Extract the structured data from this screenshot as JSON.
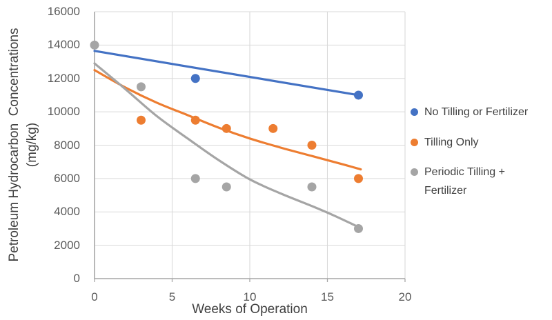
{
  "chart_data": {
    "type": "scatter",
    "title": "",
    "xlabel": "Weeks of Operation",
    "ylabel": "Petroleum Hydrocarbon Concentrations (mg/kg)",
    "ylabel_lines": [
      "Petroleum Hydrocarbon  Concentrations",
      "(mg/kg)"
    ],
    "xlim": [
      0,
      20
    ],
    "ylim": [
      0,
      16000
    ],
    "x_ticks": [
      0,
      5,
      10,
      15,
      20
    ],
    "y_ticks": [
      0,
      2000,
      4000,
      6000,
      8000,
      10000,
      12000,
      14000,
      16000
    ],
    "grid": true,
    "legend_position": "right",
    "colors": {
      "gridline": "#D9D9D9",
      "axis": "#A6A6A6",
      "tick_text": "#595959",
      "title_text": "#404040"
    },
    "series": [
      {
        "name": "No Tilling or Fertilizer",
        "legend_lines": [
          "No Tilling or Fertilizer"
        ],
        "color": "#4472C4",
        "points": [
          [
            6.5,
            12000
          ],
          [
            17,
            11000
          ]
        ],
        "trend_type": "linear",
        "trend": [
          [
            0,
            13650
          ],
          [
            17,
            11000
          ]
        ]
      },
      {
        "name": "Tilling Only",
        "legend_lines": [
          "Tilling Only"
        ],
        "color": "#ED7D31",
        "points": [
          [
            3,
            9500
          ],
          [
            6.5,
            9500
          ],
          [
            8.5,
            9000
          ],
          [
            11.5,
            9000
          ],
          [
            14,
            8000
          ],
          [
            17,
            6000
          ]
        ],
        "trend_type": "exponential",
        "trend": [
          [
            0,
            12500
          ],
          [
            2,
            11450
          ],
          [
            4,
            10550
          ],
          [
            6,
            9800
          ],
          [
            8,
            9050
          ],
          [
            10,
            8400
          ],
          [
            12,
            7850
          ],
          [
            14,
            7350
          ],
          [
            16,
            6850
          ],
          [
            17.15,
            6550
          ]
        ]
      },
      {
        "name": "Periodic Tilling + Fertilizer",
        "legend_lines": [
          "Periodic Tilling +",
          "Fertilizer"
        ],
        "color": "#A5A5A5",
        "points": [
          [
            0,
            14000
          ],
          [
            3,
            11500
          ],
          [
            6.5,
            6000
          ],
          [
            8.5,
            5500
          ],
          [
            14,
            5500
          ],
          [
            17,
            3000
          ]
        ],
        "trend_type": "exponential",
        "trend": [
          [
            0,
            12900
          ],
          [
            2,
            11350
          ],
          [
            4,
            9750
          ],
          [
            6,
            8400
          ],
          [
            8,
            7100
          ],
          [
            10,
            5950
          ],
          [
            12,
            5100
          ],
          [
            14,
            4350
          ],
          [
            15.5,
            3750
          ],
          [
            17.1,
            3050
          ]
        ]
      }
    ]
  }
}
